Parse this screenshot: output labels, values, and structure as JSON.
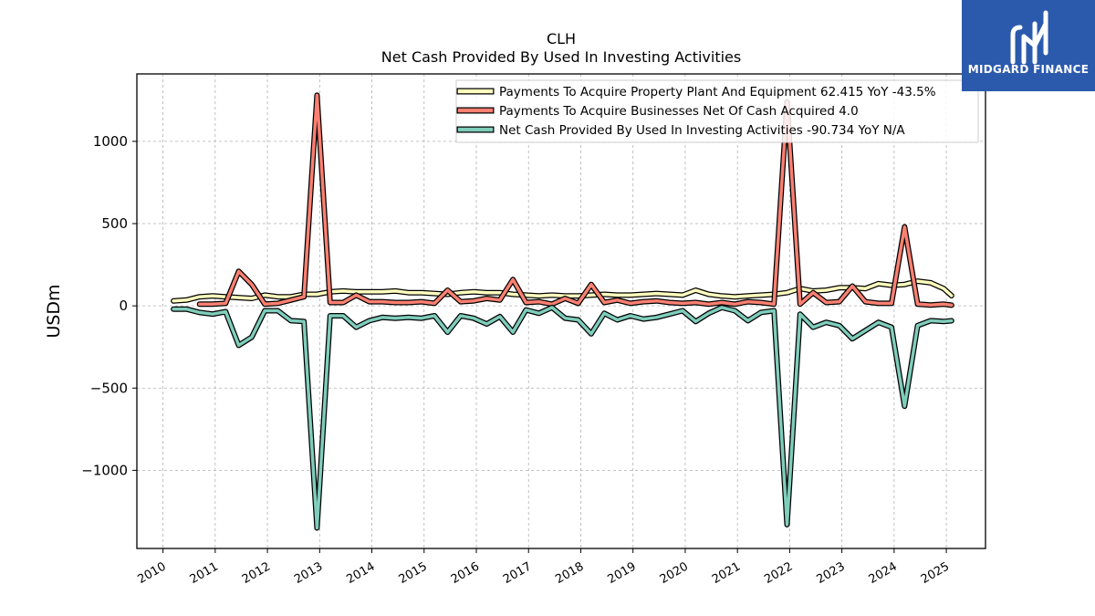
{
  "colors": {
    "ppe": "#ffffbf",
    "acquisitions": "#fa8072",
    "net_investing": "#7fcdbb",
    "outline": "#000000",
    "grid": "#b0b0b0",
    "logo_bg": "#2b5aad"
  },
  "logo": {
    "text": "MIDGARD FINANCE",
    "icon": "midgard-logo-icon"
  },
  "chart_data": {
    "type": "line",
    "title": "CLH",
    "subtitle": "Net Cash Provided By Used In Investing Activities",
    "ylabel": "USDm",
    "xlabel": "",
    "xlim": [
      2009.5,
      2025.75
    ],
    "ylim": [
      -1475,
      1410
    ],
    "yticks": [
      -1000,
      -500,
      0,
      500,
      1000
    ],
    "ytick_labels": [
      "−1000",
      "−500",
      "0",
      "500",
      "1000"
    ],
    "xticks": [
      2010,
      2011,
      2012,
      2013,
      2014,
      2015,
      2016,
      2017,
      2018,
      2019,
      2020,
      2021,
      2022,
      2023,
      2024,
      2025
    ],
    "xtick_labels": [
      "2010",
      "2011",
      "2012",
      "2013",
      "2014",
      "2015",
      "2016",
      "2017",
      "2018",
      "2019",
      "2020",
      "2021",
      "2022",
      "2023",
      "2024",
      "2025"
    ],
    "grid": true,
    "legend_position": "top-right",
    "series": [
      {
        "key": "ppe",
        "name": "Payments To Acquire Property Plant And Equipment",
        "legend_label": "Payments To Acquire Property Plant And Equipment  62.415 YoY -43.5%",
        "x": [
          2010.2,
          2010.45,
          2010.7,
          2010.95,
          2011.2,
          2011.45,
          2011.7,
          2011.95,
          2012.2,
          2012.45,
          2012.7,
          2012.95,
          2013.2,
          2013.45,
          2013.7,
          2013.95,
          2014.2,
          2014.45,
          2014.7,
          2014.95,
          2015.2,
          2015.45,
          2015.7,
          2015.95,
          2016.2,
          2016.45,
          2016.7,
          2016.95,
          2017.2,
          2017.45,
          2017.7,
          2017.95,
          2018.2,
          2018.45,
          2018.7,
          2018.95,
          2019.2,
          2019.45,
          2019.7,
          2019.95,
          2020.2,
          2020.45,
          2020.7,
          2020.95,
          2021.2,
          2021.45,
          2021.7,
          2021.95,
          2022.2,
          2022.45,
          2022.7,
          2022.95,
          2023.2,
          2023.45,
          2023.7,
          2023.95,
          2024.2,
          2024.45,
          2024.7,
          2024.95,
          2025.1
        ],
        "y": [
          30,
          35,
          55,
          60,
          55,
          50,
          45,
          65,
          55,
          55,
          70,
          70,
          85,
          90,
          85,
          85,
          85,
          90,
          80,
          80,
          75,
          70,
          80,
          85,
          80,
          80,
          70,
          65,
          60,
          65,
          60,
          60,
          65,
          70,
          65,
          65,
          70,
          75,
          70,
          65,
          95,
          70,
          60,
          55,
          60,
          65,
          70,
          80,
          105,
          90,
          95,
          110,
          110,
          105,
          135,
          125,
          130,
          150,
          140,
          105,
          62
        ]
      },
      {
        "key": "acquisitions",
        "name": "Payments To Acquire Businesses Net Of Cash Acquired",
        "legend_label": "Payments To Acquire Businesses Net Of Cash Acquired  4.0",
        "x": [
          2010.7,
          2010.95,
          2011.2,
          2011.45,
          2011.7,
          2011.95,
          2012.2,
          2012.45,
          2012.7,
          2012.95,
          2013.2,
          2013.45,
          2013.7,
          2013.95,
          2014.2,
          2014.45,
          2014.7,
          2014.95,
          2015.2,
          2015.45,
          2015.7,
          2015.95,
          2016.2,
          2016.45,
          2016.7,
          2016.95,
          2017.2,
          2017.45,
          2017.7,
          2017.95,
          2018.2,
          2018.45,
          2018.7,
          2018.95,
          2019.2,
          2019.45,
          2019.7,
          2019.95,
          2020.2,
          2020.45,
          2020.7,
          2020.95,
          2021.2,
          2021.45,
          2021.7,
          2021.95,
          2022.2,
          2022.45,
          2022.7,
          2022.95,
          2023.2,
          2023.45,
          2023.7,
          2023.95,
          2024.2,
          2024.45,
          2024.7,
          2024.95,
          2025.1
        ],
        "y": [
          10,
          10,
          15,
          210,
          130,
          10,
          15,
          35,
          55,
          1280,
          20,
          20,
          65,
          25,
          25,
          20,
          20,
          25,
          15,
          95,
          25,
          30,
          45,
          35,
          160,
          20,
          25,
          10,
          45,
          15,
          130,
          20,
          35,
          15,
          25,
          30,
          20,
          15,
          20,
          10,
          20,
          10,
          25,
          20,
          10,
          1240,
          10,
          80,
          20,
          25,
          120,
          25,
          15,
          15,
          480,
          10,
          5,
          10,
          4
        ]
      },
      {
        "key": "net_investing",
        "name": "Net Cash Provided By Used In Investing Activities",
        "legend_label": "Net Cash Provided By Used In Investing Activities  -90.734 YoY N/A",
        "x": [
          2010.2,
          2010.45,
          2010.7,
          2010.95,
          2011.2,
          2011.45,
          2011.7,
          2011.95,
          2012.2,
          2012.45,
          2012.7,
          2012.95,
          2013.2,
          2013.45,
          2013.7,
          2013.95,
          2014.2,
          2014.45,
          2014.7,
          2014.95,
          2015.2,
          2015.45,
          2015.7,
          2015.95,
          2016.2,
          2016.45,
          2016.7,
          2016.95,
          2017.2,
          2017.45,
          2017.7,
          2017.95,
          2018.2,
          2018.45,
          2018.7,
          2018.95,
          2019.2,
          2019.45,
          2019.7,
          2019.95,
          2020.2,
          2020.45,
          2020.7,
          2020.95,
          2021.2,
          2021.45,
          2021.7,
          2021.95,
          2022.2,
          2022.45,
          2022.7,
          2022.95,
          2023.2,
          2023.45,
          2023.7,
          2023.95,
          2024.2,
          2024.45,
          2024.7,
          2024.95,
          2025.1
        ],
        "y": [
          -20,
          -20,
          -40,
          -50,
          -35,
          -240,
          -190,
          -30,
          -30,
          -90,
          -95,
          -1350,
          -60,
          -60,
          -130,
          -90,
          -70,
          -75,
          -70,
          -75,
          -60,
          -160,
          -60,
          -75,
          -110,
          -65,
          -160,
          -25,
          -45,
          -10,
          -75,
          -85,
          -170,
          -45,
          -85,
          -60,
          -80,
          -70,
          -50,
          -30,
          -95,
          -45,
          -10,
          -30,
          -90,
          -40,
          -30,
          -1330,
          -50,
          -130,
          -100,
          -120,
          -200,
          -150,
          -100,
          -130,
          -610,
          -120,
          -90,
          -95,
          -91
        ]
      }
    ]
  }
}
